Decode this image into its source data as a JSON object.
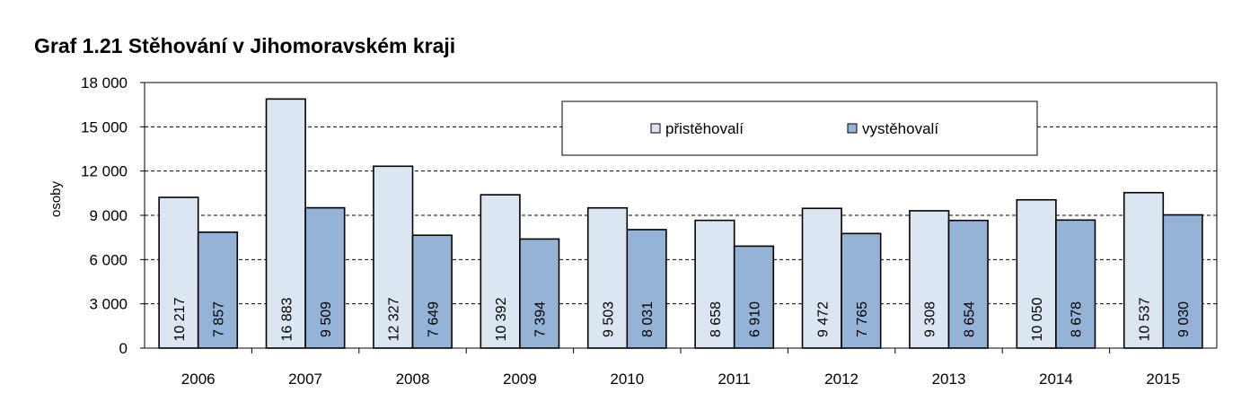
{
  "title": "Graf 1.21 Stěhování v Jihomoravském kraji",
  "chart_data": {
    "type": "bar",
    "title": "Graf 1.21 Stěhování v Jihomoravském kraji",
    "xlabel": "",
    "ylabel": "osoby",
    "ylim": [
      0,
      18000
    ],
    "yticks": [
      0,
      3000,
      6000,
      9000,
      12000,
      15000,
      18000
    ],
    "ytick_labels": [
      "0",
      "3 000",
      "6 000",
      "9 000",
      "12 000",
      "15 000",
      "18 000"
    ],
    "categories": [
      "2006",
      "2007",
      "2008",
      "2009",
      "2010",
      "2011",
      "2012",
      "2013",
      "2014",
      "2015"
    ],
    "series": [
      {
        "name": "přistěhovalí",
        "color": "#dce6f2",
        "values": [
          10217,
          16883,
          12327,
          10392,
          9503,
          8658,
          9472,
          9308,
          10050,
          10537
        ],
        "labels": [
          "10 217",
          "16 883",
          "12 327",
          "10 392",
          "9 503",
          "8 658",
          "9 472",
          "9 308",
          "10 050",
          "10 537"
        ]
      },
      {
        "name": "vystěhovalí",
        "color": "#95b3d7",
        "values": [
          7857,
          9509,
          7649,
          7394,
          8031,
          6910,
          7765,
          8654,
          8678,
          9030
        ],
        "labels": [
          "7 857",
          "9 509",
          "7 649",
          "7 394",
          "8 031",
          "6 910",
          "7 765",
          "8 654",
          "8 678",
          "9 030"
        ]
      }
    ],
    "grid": true,
    "grid_style": "dashed",
    "legend_position": "top-right"
  }
}
